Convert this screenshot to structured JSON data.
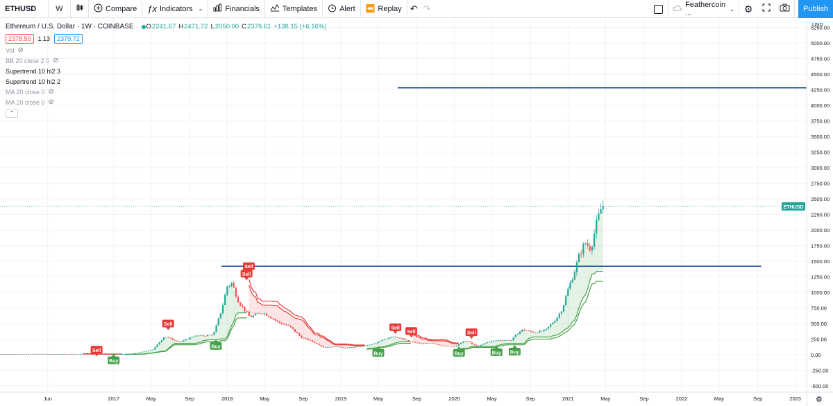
{
  "toolbar": {
    "symbol": "ETHUSD",
    "interval": "W",
    "compare_label": "Compare",
    "indicators_label": "Indicators",
    "financials_label": "Financials",
    "templates_label": "Templates",
    "alert_label": "Alert",
    "replay_label": "Replay",
    "layout_name": "Feathercoin ...",
    "publish_label": "Publish"
  },
  "legend": {
    "title": "Ethereum / U.S. Dollar · 1W · COINBASE",
    "o_label": "O",
    "o_value": "2241.67",
    "h_label": "H",
    "h_value": "2471.72",
    "l_label": "L",
    "l_value": "2050.00",
    "c_label": "C",
    "c_value": "2379.61",
    "change": "+138.15 (+6.16%)",
    "bid": "2378.59",
    "spread": "1.13",
    "ask": "2379.72",
    "indicators": [
      {
        "label": "Vol",
        "dim": true
      },
      {
        "label": "BB 20 close 2 0",
        "dim": true
      },
      {
        "label": "Supertrend 10 hl2 3",
        "dim": false
      },
      {
        "label": "Supertrend 10 hl2 2",
        "dim": false
      },
      {
        "label": "MA 20 close 0",
        "dim": true
      },
      {
        "label": "MA 20 close 0",
        "dim": true
      }
    ]
  },
  "colors": {
    "up": "#26a69a",
    "down": "#ef5350",
    "hline": "#0d47a1",
    "st_green": "#43a047",
    "st_red": "#e53935",
    "accent": "#2196f3"
  },
  "chart_data": {
    "type": "candlestick",
    "currency": "USD",
    "last_price_label": "ETHUSD",
    "y_ticks": [
      "5250.00",
      "5000.00",
      "4750.00",
      "4500.00",
      "4250.00",
      "4000.00",
      "3750.00",
      "3500.00",
      "3250.00",
      "3000.00",
      "2750.00",
      "2500.00",
      "2250.00",
      "2000.00",
      "1750.00",
      "1500.00",
      "1250.00",
      "1000.00",
      "750.00",
      "500.00",
      "250.00",
      "0.00",
      "-250.00",
      "-500.00"
    ],
    "ylim": [
      -600,
      5400
    ],
    "x_ticks": [
      "Jun",
      "2017",
      "May",
      "Sep",
      "2018",
      "May",
      "Sep",
      "2019",
      "May",
      "Sep",
      "2020",
      "May",
      "Sep",
      "2021",
      "May",
      "Sep",
      "2022",
      "May",
      "Sep",
      "2023"
    ],
    "x_tick_dates": [
      2016.42,
      2017.0,
      2017.33,
      2017.67,
      2018.0,
      2018.33,
      2018.67,
      2019.0,
      2019.33,
      2019.67,
      2020.0,
      2020.33,
      2020.67,
      2021.0,
      2021.33,
      2021.67,
      2022.0,
      2022.33,
      2022.67,
      2023.0
    ],
    "xlim": [
      2016.0,
      2023.1
    ],
    "price_path": [
      [
        2016.0,
        9
      ],
      [
        2016.3,
        11
      ],
      [
        2016.6,
        11
      ],
      [
        2016.9,
        8
      ],
      [
        2017.0,
        8
      ],
      [
        2017.15,
        13
      ],
      [
        2017.25,
        45
      ],
      [
        2017.35,
        85
      ],
      [
        2017.45,
        300
      ],
      [
        2017.52,
        240
      ],
      [
        2017.6,
        210
      ],
      [
        2017.7,
        300
      ],
      [
        2017.8,
        305
      ],
      [
        2017.88,
        330
      ],
      [
        2017.95,
        720
      ],
      [
        2018.0,
        1100
      ],
      [
        2018.04,
        1150
      ],
      [
        2018.1,
        850
      ],
      [
        2018.2,
        600
      ],
      [
        2018.3,
        680
      ],
      [
        2018.35,
        640
      ],
      [
        2018.45,
        520
      ],
      [
        2018.55,
        450
      ],
      [
        2018.65,
        280
      ],
      [
        2018.75,
        210
      ],
      [
        2018.85,
        120
      ],
      [
        2018.95,
        130
      ],
      [
        2019.05,
        110
      ],
      [
        2019.2,
        140
      ],
      [
        2019.3,
        180
      ],
      [
        2019.4,
        260
      ],
      [
        2019.45,
        300
      ],
      [
        2019.5,
        280
      ],
      [
        2019.6,
        210
      ],
      [
        2019.7,
        180
      ],
      [
        2019.8,
        180
      ],
      [
        2019.9,
        145
      ],
      [
        2020.0,
        130
      ],
      [
        2020.1,
        230
      ],
      [
        2020.2,
        130
      ],
      [
        2020.3,
        210
      ],
      [
        2020.4,
        235
      ],
      [
        2020.5,
        230
      ],
      [
        2020.55,
        340
      ],
      [
        2020.6,
        400
      ],
      [
        2020.7,
        360
      ],
      [
        2020.8,
        390
      ],
      [
        2020.9,
        590
      ],
      [
        2020.95,
        740
      ],
      [
        2021.0,
        1050
      ],
      [
        2021.05,
        1300
      ],
      [
        2021.1,
        1600
      ],
      [
        2021.15,
        1800
      ],
      [
        2021.2,
        1700
      ],
      [
        2021.25,
        2100
      ],
      [
        2021.3,
        2400
      ],
      [
        2021.32,
        2379.61
      ]
    ],
    "horizontal_lines": [
      {
        "price": 4280,
        "x_start": 2019.5,
        "x_end": 2023.1
      },
      {
        "price": 1420,
        "x_start": 2017.95,
        "x_end": 2022.7
      }
    ],
    "signals": [
      {
        "label": "Sell",
        "date": 2016.85,
        "price": 80
      },
      {
        "label": "Buy",
        "date": 2017.0,
        "price": -90
      },
      {
        "label": "Sell",
        "date": 2017.48,
        "price": 500
      },
      {
        "label": "Buy",
        "date": 2017.9,
        "price": 140
      },
      {
        "label": "Sell",
        "date": 2018.19,
        "price": 1420
      },
      {
        "label": "Sell",
        "date": 2018.17,
        "price": 1300
      },
      {
        "label": "Buy",
        "date": 2019.33,
        "price": 30
      },
      {
        "label": "Sell",
        "date": 2019.48,
        "price": 440
      },
      {
        "label": "Sell",
        "date": 2019.62,
        "price": 380
      },
      {
        "label": "Buy",
        "date": 2020.04,
        "price": 30
      },
      {
        "label": "Sell",
        "date": 2020.15,
        "price": 360
      },
      {
        "label": "Buy",
        "date": 2020.37,
        "price": 40
      },
      {
        "label": "Buy",
        "date": 2020.53,
        "price": 50
      }
    ]
  }
}
